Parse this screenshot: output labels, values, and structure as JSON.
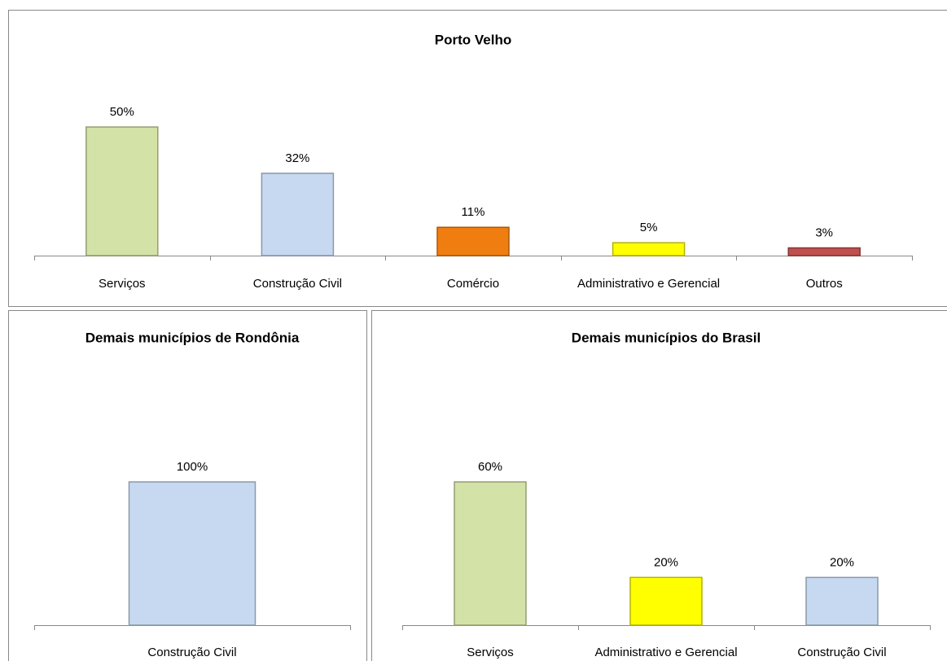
{
  "chart_data": [
    {
      "type": "bar",
      "title": "Porto Velho",
      "categories": [
        "Serviços",
        "Construção Civil",
        "Comércio",
        "Administrativo e Gerencial",
        "Outros"
      ],
      "values": [
        50,
        32,
        11,
        5,
        3
      ],
      "value_labels": [
        "50%",
        "32%",
        "11%",
        "5%",
        "3%"
      ],
      "colors": [
        "#d3e2a6",
        "#c6d9f1",
        "#f07d0f",
        "#ffff00",
        "#c0504d"
      ]
    },
    {
      "type": "bar",
      "title": "Demais municípios de Rondônia",
      "categories": [
        "Construção Civil"
      ],
      "values": [
        100
      ],
      "value_labels": [
        "100%"
      ],
      "colors": [
        "#c6d9f1"
      ]
    },
    {
      "type": "bar",
      "title": "Demais municípios do Brasil",
      "categories": [
        "Serviços",
        "Administrativo e Gerencial",
        "Construção Civil"
      ],
      "values": [
        60,
        20,
        20
      ],
      "value_labels": [
        "60%",
        "20%",
        "20%"
      ],
      "colors": [
        "#d3e2a6",
        "#ffff00",
        "#c6d9f1"
      ]
    }
  ]
}
